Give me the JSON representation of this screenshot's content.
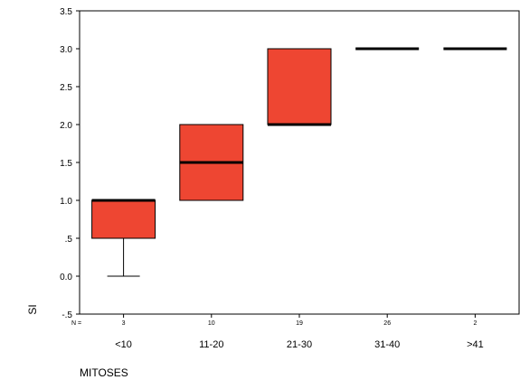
{
  "chart_data": {
    "type": "boxplot",
    "xlabel": "MITOSES",
    "ylabel": "SI",
    "ylim": [
      -0.5,
      3.5
    ],
    "yticks": [
      "3.5",
      "3.0",
      "2.5",
      "2.0",
      "1.5",
      "1.0",
      ".5",
      "0.0",
      "-.5"
    ],
    "ytick_values": [
      3.5,
      3.0,
      2.5,
      2.0,
      1.5,
      1.0,
      0.5,
      0.0,
      -0.5
    ],
    "n_prefix": "N =",
    "categories": [
      "<10",
      "11-20",
      "21-30",
      "31-40",
      ">41"
    ],
    "n": [
      "3",
      "10",
      "19",
      "26",
      "2"
    ],
    "boxes": [
      {
        "min": 0.0,
        "q1": 0.5,
        "median": 1.0,
        "q3": 1.0,
        "max": 1.0
      },
      {
        "min": 1.0,
        "q1": 1.0,
        "median": 1.5,
        "q3": 2.0,
        "max": 2.0
      },
      {
        "min": 2.0,
        "q1": 2.0,
        "median": 2.0,
        "q3": 3.0,
        "max": 3.0
      },
      {
        "min": 3.0,
        "q1": 3.0,
        "median": 3.0,
        "q3": 3.0,
        "max": 3.0
      },
      {
        "min": 3.0,
        "q1": 3.0,
        "median": 3.0,
        "q3": 3.0,
        "max": 3.0
      }
    ],
    "box_color": "#ee4632",
    "grid": false
  }
}
